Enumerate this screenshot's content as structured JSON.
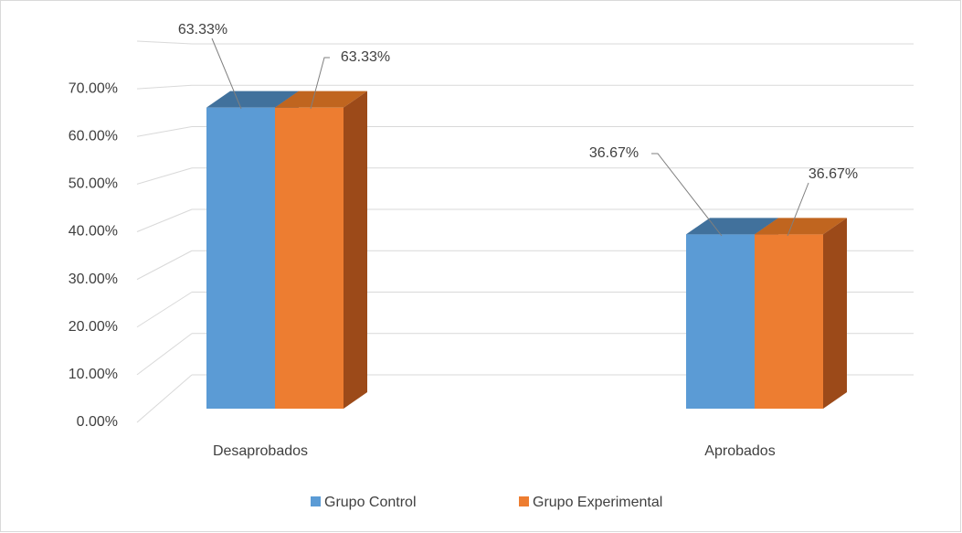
{
  "chart_data": {
    "type": "bar3d",
    "categories": [
      "Desaprobados",
      "Aprobados"
    ],
    "series": [
      {
        "name": "Grupo Control",
        "color": "#5b9bd5",
        "values": [
          63.33,
          36.67
        ],
        "value_labels": [
          "63.33%",
          "36.67%"
        ]
      },
      {
        "name": "Grupo Experimental",
        "color": "#ed7d31",
        "values": [
          63.33,
          36.67
        ],
        "value_labels": [
          "63.33%",
          "36.67%"
        ]
      }
    ],
    "ylim": [
      0,
      80
    ],
    "yticks": [
      {
        "value": 0,
        "label": "0.00%"
      },
      {
        "value": 10,
        "label": "10.00%"
      },
      {
        "value": 20,
        "label": "20.00%"
      },
      {
        "value": 30,
        "label": "30.00%"
      },
      {
        "value": 40,
        "label": "40.00%"
      },
      {
        "value": 50,
        "label": "50.00%"
      },
      {
        "value": 60,
        "label": "60.00%"
      },
      {
        "value": 70,
        "label": "70.00%"
      }
    ],
    "grid": true,
    "legend": "bottom"
  }
}
